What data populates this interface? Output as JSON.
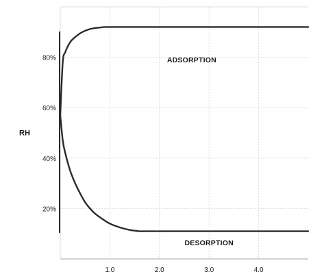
{
  "chart_data": {
    "type": "line",
    "title": "",
    "xlabel": "",
    "ylabel": "RH",
    "xlim": [
      0,
      5
    ],
    "ylim": [
      0,
      100
    ],
    "x_ticks": [
      "1.0",
      "2.0",
      "3.0",
      "4.0"
    ],
    "y_ticks": [
      "20%",
      "40%",
      "60%",
      "80%"
    ],
    "grid": true,
    "series": [
      {
        "name": "ADSORPTION",
        "x": [
          0.0,
          0.05,
          0.1,
          0.2,
          0.3,
          0.4,
          0.5,
          0.6,
          0.7,
          0.8,
          0.9,
          1.0,
          1.5,
          2.0,
          3.0,
          4.0,
          5.0
        ],
        "y": [
          57,
          78,
          82,
          86,
          88,
          89.5,
          90.5,
          91.2,
          91.6,
          91.8,
          92,
          92,
          92,
          92,
          92,
          92,
          92
        ]
      },
      {
        "name": "DESORPTION",
        "x": [
          0.0,
          0.05,
          0.1,
          0.2,
          0.3,
          0.4,
          0.5,
          0.6,
          0.7,
          0.8,
          1.0,
          1.2,
          1.4,
          1.6,
          1.7,
          2.0,
          3.0,
          4.0,
          5.0
        ],
        "y": [
          57,
          47,
          42,
          35,
          30,
          26,
          22.5,
          20,
          18,
          16.5,
          14,
          12.5,
          11.5,
          11,
          11,
          11,
          11,
          11,
          11
        ]
      }
    ],
    "colors": {
      "line": "#2b2b2b",
      "grid": "#d2d2d2",
      "frame": "#8a8a8a"
    }
  }
}
